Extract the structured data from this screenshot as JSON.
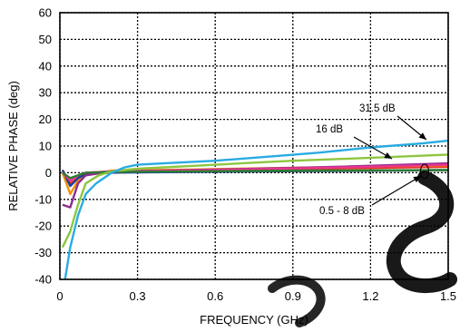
{
  "chart_data": {
    "type": "line",
    "title": "",
    "xlabel": "FREQUENCY (GHz)",
    "ylabel": "RELATIVE PHASE (deg)",
    "xlim": [
      0,
      1.5
    ],
    "ylim": [
      -40,
      60
    ],
    "x_ticks": [
      "0",
      "0.3",
      "0.6",
      "0.9",
      "1.2",
      "1.5"
    ],
    "y_ticks": [
      "-40",
      "-30",
      "-20",
      "-10",
      "0",
      "10",
      "20",
      "30",
      "40",
      "50",
      "60"
    ],
    "grid": true,
    "grid_style": "dotted",
    "legend": "none",
    "series": [
      {
        "color": "#e6332a",
        "points": [
          [
            0.01,
            1
          ],
          [
            0.04,
            -4
          ],
          [
            0.07,
            -2
          ],
          [
            0.1,
            0
          ],
          [
            0.2,
            0.5
          ],
          [
            0.5,
            0.8
          ],
          [
            1.0,
            1.5
          ],
          [
            1.5,
            2.2
          ]
        ]
      },
      {
        "color": "#f39200",
        "points": [
          [
            0.01,
            0
          ],
          [
            0.04,
            -8
          ],
          [
            0.07,
            -3
          ],
          [
            0.1,
            -1
          ],
          [
            0.2,
            0.8
          ],
          [
            0.5,
            1.2
          ],
          [
            1.0,
            2
          ],
          [
            1.5,
            2.8
          ]
        ]
      },
      {
        "color": "#1f3f9b",
        "points": [
          [
            0.01,
            1
          ],
          [
            0.04,
            -5
          ],
          [
            0.07,
            -2
          ],
          [
            0.1,
            -0.5
          ],
          [
            0.2,
            0
          ],
          [
            0.5,
            0.3
          ],
          [
            1.0,
            0.6
          ],
          [
            1.5,
            1
          ]
        ]
      },
      {
        "color": "#8e2c8e",
        "points": [
          [
            0.01,
            -12
          ],
          [
            0.04,
            -13
          ],
          [
            0.07,
            -4
          ],
          [
            0.1,
            -1
          ],
          [
            0.2,
            0.5
          ],
          [
            0.5,
            1
          ],
          [
            1.0,
            2
          ],
          [
            1.5,
            3.5
          ]
        ]
      },
      {
        "color": "#e8368f",
        "points": [
          [
            0.01,
            0
          ],
          [
            0.04,
            -3
          ],
          [
            0.07,
            -1
          ],
          [
            0.1,
            0
          ],
          [
            0.2,
            0.5
          ],
          [
            0.5,
            0.8
          ],
          [
            1.0,
            1.8
          ],
          [
            1.5,
            3
          ]
        ]
      },
      {
        "color": "#2e7d32",
        "points": [
          [
            0.01,
            0
          ],
          [
            0.04,
            -2
          ],
          [
            0.07,
            -1
          ],
          [
            0.1,
            0
          ],
          [
            0.2,
            0.3
          ],
          [
            0.5,
            0.5
          ],
          [
            1.0,
            0.8
          ],
          [
            1.5,
            1
          ]
        ]
      },
      {
        "color": "#8dc63f",
        "points": [
          [
            0.01,
            -28
          ],
          [
            0.04,
            -22
          ],
          [
            0.07,
            -12
          ],
          [
            0.1,
            -4
          ],
          [
            0.15,
            -1
          ],
          [
            0.2,
            0.5
          ],
          [
            0.3,
            1.5
          ],
          [
            0.5,
            2.5
          ],
          [
            0.7,
            3.5
          ],
          [
            0.9,
            4.5
          ],
          [
            1.1,
            5.2
          ],
          [
            1.3,
            6
          ],
          [
            1.5,
            6.8
          ]
        ]
      },
      {
        "color": "#29abe2",
        "points": [
          [
            0.02,
            -40
          ],
          [
            0.04,
            -28
          ],
          [
            0.07,
            -16
          ],
          [
            0.1,
            -8
          ],
          [
            0.14,
            -4
          ],
          [
            0.2,
            0
          ],
          [
            0.25,
            2
          ],
          [
            0.3,
            3
          ],
          [
            0.4,
            3.5
          ],
          [
            0.6,
            4.5
          ],
          [
            0.8,
            6
          ],
          [
            1.0,
            7.5
          ],
          [
            1.2,
            9.5
          ],
          [
            1.4,
            11
          ],
          [
            1.5,
            12
          ]
        ]
      }
    ],
    "annotations": [
      {
        "text": "31.5 dB"
      },
      {
        "text": "16 dB"
      },
      {
        "text": "0.5 - 8 dB"
      }
    ]
  }
}
